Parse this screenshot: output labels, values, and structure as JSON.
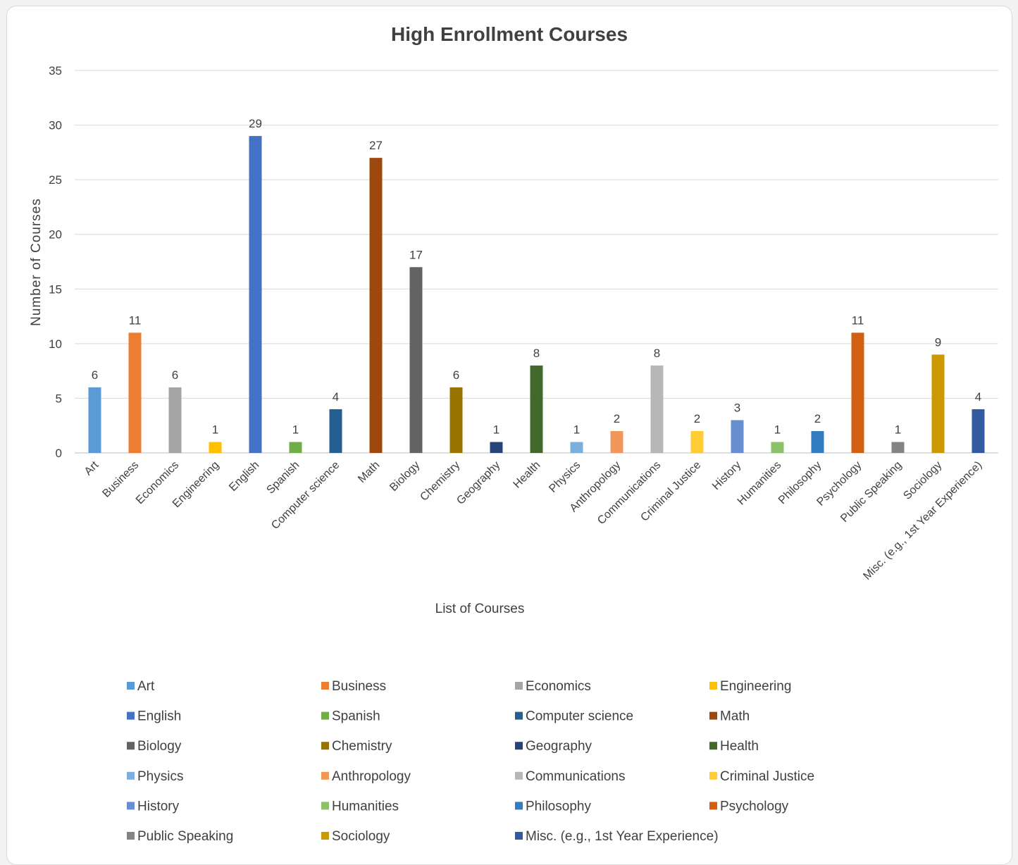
{
  "chart_data": {
    "type": "bar",
    "title": "High Enrollment Courses",
    "xlabel": "List of Courses",
    "ylabel": "Number of Courses",
    "ylim": [
      0,
      35
    ],
    "yticks": [
      0,
      5,
      10,
      15,
      20,
      25,
      30,
      35
    ],
    "grid": true,
    "legend_position": "bottom",
    "categories": [
      "Art",
      "Business",
      "Economics",
      "Engineering",
      "English",
      "Spanish",
      "Computer science",
      "Math",
      "Biology",
      "Chemistry",
      "Geography",
      "Health",
      "Physics",
      "Anthropology",
      "Communications",
      "Criminal Justice",
      "History",
      "Humanities",
      "Philosophy",
      "Psychology",
      "Public Speaking",
      "Sociology",
      "Misc. (e.g., 1st Year Experience)"
    ],
    "values": [
      6,
      11,
      6,
      1,
      29,
      1,
      4,
      27,
      17,
      6,
      1,
      8,
      1,
      2,
      8,
      2,
      3,
      1,
      2,
      11,
      1,
      9,
      4
    ],
    "colors": [
      "#5b9bd5",
      "#ed7d31",
      "#a5a5a5",
      "#ffc000",
      "#4472c4",
      "#70ad47",
      "#255e91",
      "#9e480e",
      "#636363",
      "#997300",
      "#264478",
      "#43682b",
      "#7cafdd",
      "#f1975a",
      "#b7b7b7",
      "#ffcd33",
      "#698ed0",
      "#8cc168",
      "#327dc2",
      "#d26012",
      "#848484",
      "#cc9a00",
      "#335aa1"
    ]
  }
}
